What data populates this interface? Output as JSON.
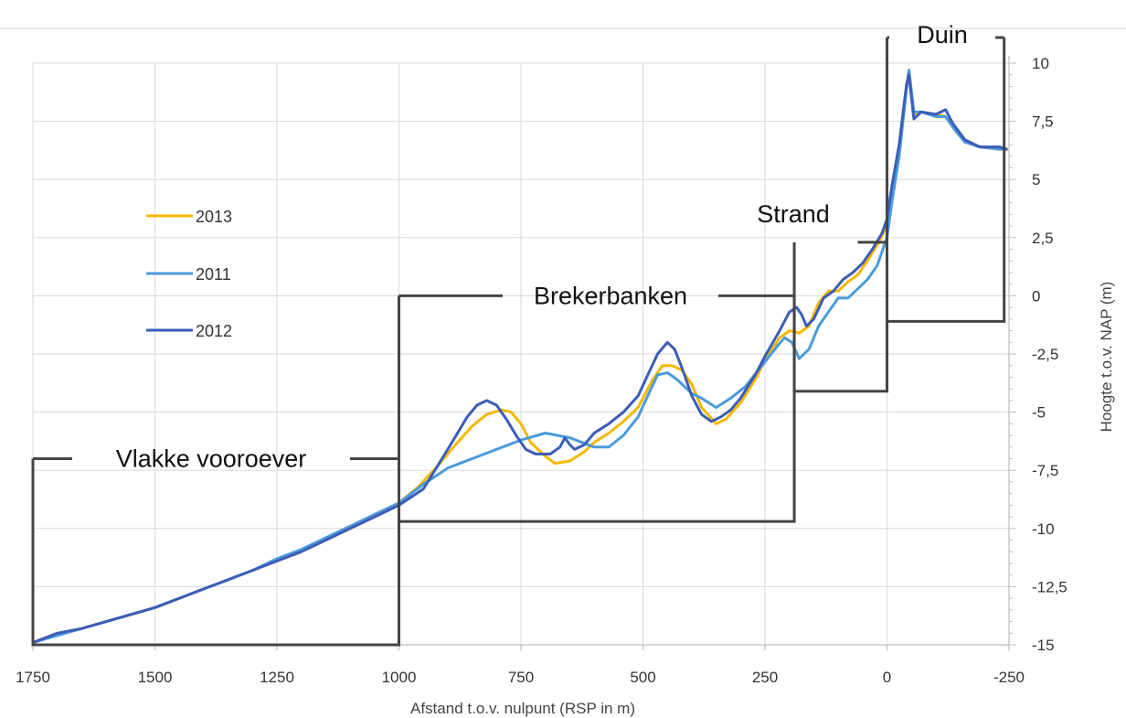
{
  "chart_data": {
    "type": "line",
    "xlabel": "Afstand t.o.v. nulpunt (RSP in m)",
    "ylabel": "Hoogte t.o.v. NAP (m)",
    "xlim": [
      1750,
      -250
    ],
    "ylim": [
      -15,
      10
    ],
    "x_reversed": true,
    "y_axis_side": "right",
    "grid": true,
    "legend_position": "left",
    "xticks": [
      1750,
      1500,
      1250,
      1000,
      750,
      500,
      250,
      0,
      -250
    ],
    "xtick_labels": [
      "1750",
      "1500",
      "1250",
      "1000",
      "750",
      "500",
      "250",
      "0",
      "-250"
    ],
    "yticks": [
      10,
      7.5,
      5,
      2.5,
      0,
      -2.5,
      -5,
      -7.5,
      -10,
      -12.5,
      -15
    ],
    "ytick_labels": [
      "10",
      "7,5",
      "5",
      "2,5",
      "0",
      "-2,5",
      "-5",
      "-7,5",
      "-10",
      "-12,5",
      "-15"
    ],
    "series": [
      {
        "name": "2013",
        "color": "#F5B800",
        "points": [
          [
            1750,
            -14.9
          ],
          [
            1700,
            -14.5
          ],
          [
            1650,
            -14.3
          ],
          [
            1600,
            -14.0
          ],
          [
            1550,
            -13.7
          ],
          [
            1500,
            -13.4
          ],
          [
            1450,
            -13.0
          ],
          [
            1400,
            -12.6
          ],
          [
            1350,
            -12.2
          ],
          [
            1300,
            -11.8
          ],
          [
            1250,
            -11.4
          ],
          [
            1200,
            -11.0
          ],
          [
            1150,
            -10.5
          ],
          [
            1100,
            -10.0
          ],
          [
            1050,
            -9.5
          ],
          [
            1000,
            -8.9
          ],
          [
            960,
            -8.2
          ],
          [
            920,
            -7.3
          ],
          [
            880,
            -6.3
          ],
          [
            850,
            -5.6
          ],
          [
            820,
            -5.1
          ],
          [
            790,
            -4.9
          ],
          [
            770,
            -5.0
          ],
          [
            750,
            -5.5
          ],
          [
            730,
            -6.3
          ],
          [
            700,
            -6.9
          ],
          [
            680,
            -7.2
          ],
          [
            650,
            -7.1
          ],
          [
            620,
            -6.7
          ],
          [
            600,
            -6.3
          ],
          [
            570,
            -5.9
          ],
          [
            540,
            -5.4
          ],
          [
            510,
            -4.8
          ],
          [
            480,
            -3.6
          ],
          [
            460,
            -3.0
          ],
          [
            440,
            -3.0
          ],
          [
            420,
            -3.2
          ],
          [
            400,
            -3.8
          ],
          [
            380,
            -4.8
          ],
          [
            350,
            -5.5
          ],
          [
            330,
            -5.3
          ],
          [
            300,
            -4.6
          ],
          [
            270,
            -3.6
          ],
          [
            250,
            -2.8
          ],
          [
            220,
            -1.8
          ],
          [
            200,
            -1.5
          ],
          [
            180,
            -1.6
          ],
          [
            160,
            -1.3
          ],
          [
            140,
            -0.3
          ],
          [
            120,
            0.2
          ],
          [
            100,
            0.2
          ],
          [
            80,
            0.6
          ],
          [
            60,
            0.9
          ],
          [
            40,
            1.5
          ],
          [
            20,
            2.2
          ],
          [
            0,
            3.0
          ],
          [
            -10,
            4.4
          ],
          [
            -25,
            6.2
          ],
          [
            -40,
            9.0
          ],
          [
            -45,
            9.7
          ],
          [
            -55,
            7.8
          ],
          [
            -70,
            7.9
          ],
          [
            -100,
            7.8
          ],
          [
            -120,
            7.7
          ],
          [
            -140,
            7.1
          ],
          [
            -160,
            6.6
          ],
          [
            -190,
            6.4
          ],
          [
            -230,
            6.3
          ],
          [
            -245,
            6.3
          ]
        ]
      },
      {
        "name": "2011",
        "color": "#4A9BDC",
        "points": [
          [
            1750,
            -14.9
          ],
          [
            1700,
            -14.6
          ],
          [
            1650,
            -14.3
          ],
          [
            1600,
            -14.0
          ],
          [
            1550,
            -13.7
          ],
          [
            1500,
            -13.4
          ],
          [
            1450,
            -13.0
          ],
          [
            1400,
            -12.6
          ],
          [
            1350,
            -12.2
          ],
          [
            1300,
            -11.8
          ],
          [
            1250,
            -11.3
          ],
          [
            1200,
            -10.9
          ],
          [
            1150,
            -10.4
          ],
          [
            1100,
            -9.9
          ],
          [
            1050,
            -9.4
          ],
          [
            1000,
            -8.9
          ],
          [
            950,
            -8.1
          ],
          [
            900,
            -7.4
          ],
          [
            850,
            -7.0
          ],
          [
            800,
            -6.6
          ],
          [
            750,
            -6.2
          ],
          [
            700,
            -5.9
          ],
          [
            650,
            -6.1
          ],
          [
            600,
            -6.5
          ],
          [
            570,
            -6.5
          ],
          [
            540,
            -6.0
          ],
          [
            510,
            -5.2
          ],
          [
            490,
            -4.3
          ],
          [
            470,
            -3.4
          ],
          [
            450,
            -3.3
          ],
          [
            430,
            -3.6
          ],
          [
            400,
            -4.2
          ],
          [
            380,
            -4.4
          ],
          [
            350,
            -4.8
          ],
          [
            320,
            -4.4
          ],
          [
            290,
            -3.9
          ],
          [
            260,
            -3.1
          ],
          [
            230,
            -2.3
          ],
          [
            210,
            -1.8
          ],
          [
            195,
            -2.0
          ],
          [
            180,
            -2.7
          ],
          [
            160,
            -2.3
          ],
          [
            140,
            -1.3
          ],
          [
            120,
            -0.7
          ],
          [
            100,
            -0.1
          ],
          [
            80,
            -0.1
          ],
          [
            60,
            0.3
          ],
          [
            40,
            0.7
          ],
          [
            20,
            1.3
          ],
          [
            0,
            2.5
          ],
          [
            -10,
            4.0
          ],
          [
            -25,
            6.0
          ],
          [
            -40,
            8.9
          ],
          [
            -45,
            9.7
          ],
          [
            -55,
            7.9
          ],
          [
            -70,
            7.9
          ],
          [
            -100,
            7.7
          ],
          [
            -120,
            7.7
          ],
          [
            -140,
            7.1
          ],
          [
            -160,
            6.6
          ],
          [
            -190,
            6.4
          ],
          [
            -230,
            6.3
          ],
          [
            -245,
            6.3
          ]
        ]
      },
      {
        "name": "2012",
        "color": "#3B5DB8",
        "points": [
          [
            1750,
            -14.9
          ],
          [
            1700,
            -14.5
          ],
          [
            1650,
            -14.3
          ],
          [
            1600,
            -14.0
          ],
          [
            1550,
            -13.7
          ],
          [
            1500,
            -13.4
          ],
          [
            1450,
            -13.0
          ],
          [
            1400,
            -12.6
          ],
          [
            1350,
            -12.2
          ],
          [
            1300,
            -11.8
          ],
          [
            1250,
            -11.4
          ],
          [
            1200,
            -11.0
          ],
          [
            1150,
            -10.5
          ],
          [
            1100,
            -10.0
          ],
          [
            1050,
            -9.5
          ],
          [
            1000,
            -9.0
          ],
          [
            950,
            -8.3
          ],
          [
            900,
            -6.6
          ],
          [
            880,
            -5.9
          ],
          [
            860,
            -5.2
          ],
          [
            840,
            -4.7
          ],
          [
            820,
            -4.5
          ],
          [
            800,
            -4.7
          ],
          [
            780,
            -5.3
          ],
          [
            760,
            -6.0
          ],
          [
            740,
            -6.6
          ],
          [
            720,
            -6.8
          ],
          [
            690,
            -6.8
          ],
          [
            670,
            -6.5
          ],
          [
            660,
            -6.1
          ],
          [
            650,
            -6.4
          ],
          [
            640,
            -6.6
          ],
          [
            620,
            -6.4
          ],
          [
            600,
            -5.9
          ],
          [
            570,
            -5.5
          ],
          [
            540,
            -5.0
          ],
          [
            510,
            -4.3
          ],
          [
            490,
            -3.4
          ],
          [
            470,
            -2.5
          ],
          [
            450,
            -2.0
          ],
          [
            435,
            -2.3
          ],
          [
            420,
            -3.1
          ],
          [
            400,
            -4.3
          ],
          [
            380,
            -5.1
          ],
          [
            360,
            -5.4
          ],
          [
            340,
            -5.2
          ],
          [
            320,
            -4.9
          ],
          [
            300,
            -4.4
          ],
          [
            270,
            -3.4
          ],
          [
            250,
            -2.6
          ],
          [
            220,
            -1.5
          ],
          [
            200,
            -0.7
          ],
          [
            185,
            -0.5
          ],
          [
            175,
            -0.8
          ],
          [
            165,
            -1.3
          ],
          [
            150,
            -1.0
          ],
          [
            130,
            -0.1
          ],
          [
            110,
            0.2
          ],
          [
            90,
            0.7
          ],
          [
            70,
            1.0
          ],
          [
            50,
            1.4
          ],
          [
            30,
            2.0
          ],
          [
            10,
            2.7
          ],
          [
            0,
            3.3
          ],
          [
            -10,
            4.7
          ],
          [
            -25,
            6.5
          ],
          [
            -40,
            9.1
          ],
          [
            -45,
            9.5
          ],
          [
            -55,
            7.6
          ],
          [
            -70,
            7.9
          ],
          [
            -100,
            7.8
          ],
          [
            -120,
            8.0
          ],
          [
            -135,
            7.4
          ],
          [
            -160,
            6.7
          ],
          [
            -190,
            6.4
          ],
          [
            -230,
            6.4
          ],
          [
            -245,
            6.3
          ]
        ]
      }
    ],
    "zones": [
      {
        "label": "Vlakke vooroever",
        "x_from": 1750,
        "x_to": 1000,
        "y_top": -7.0,
        "y_bottom": -15.0
      },
      {
        "label": "Brekerbanken",
        "x_from": 1000,
        "x_to": 190,
        "y_top": 0.0,
        "y_bottom": -9.7
      },
      {
        "label": "Strand",
        "x_from": 190,
        "x_to": 0,
        "y_top": 2.3,
        "y_bottom": -4.1
      },
      {
        "label": "Duin",
        "x_from": 0,
        "x_to": -240,
        "y_top": 11.1,
        "y_bottom": -1.1
      }
    ]
  }
}
